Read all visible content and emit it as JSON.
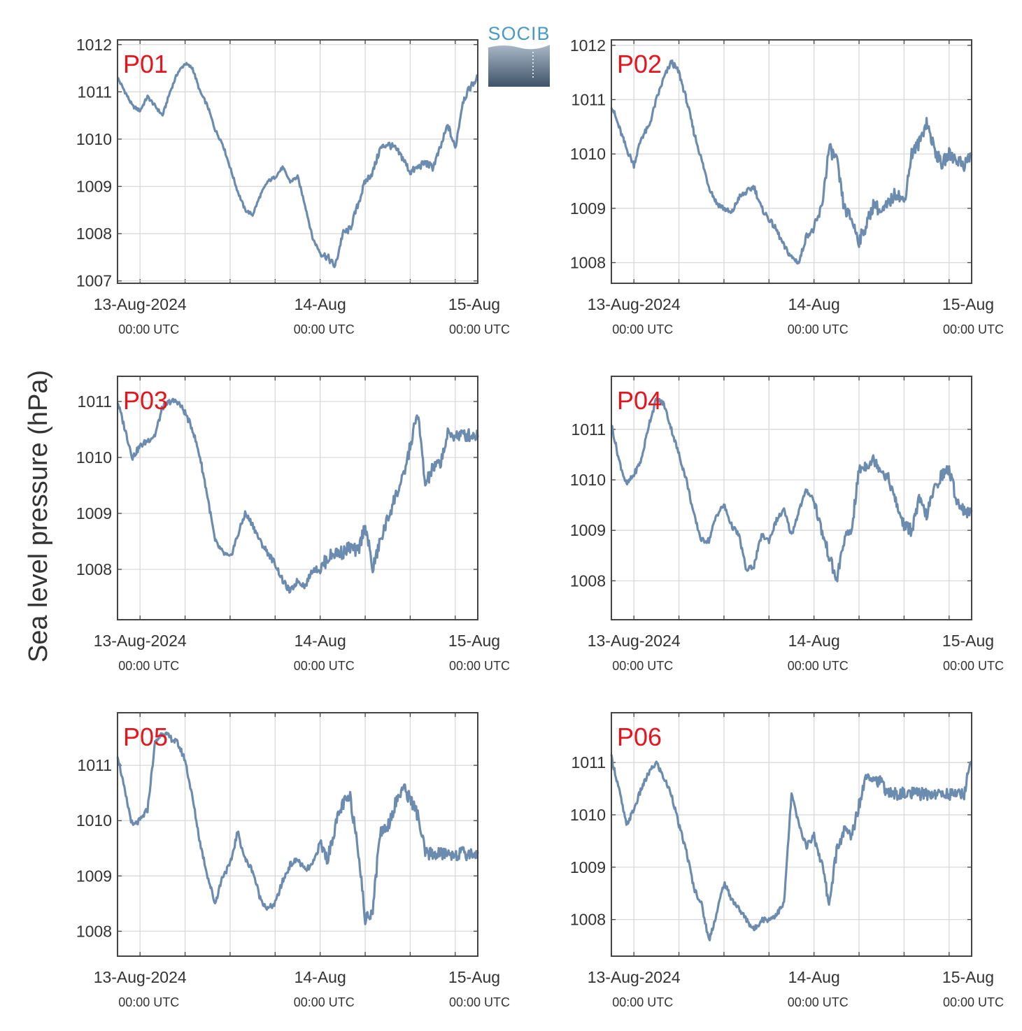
{
  "figure": {
    "ylabel": "Sea level pressure (hPa)",
    "logo_text": "SOCIB",
    "x_tick_dates": [
      "13-Aug-2024",
      "14-Aug",
      "15-Aug"
    ],
    "x_tick_times": [
      "00:00 UTC",
      "00:00 UTC",
      "00:00 UTC"
    ],
    "colors": {
      "line": "#6b8caf",
      "panel_label": "#e8141c",
      "grid": "#d9d9d9",
      "axes": "#444444"
    }
  },
  "chart_data": [
    {
      "type": "line",
      "name": "P01",
      "x_unit": "hours since 13-Aug-2024 00:00 UTC",
      "xlim": [
        -3,
        45
      ],
      "ylim": [
        1006.95,
        1012.1
      ],
      "yticks": [
        1007,
        1008,
        1009,
        1010,
        1011,
        1012
      ],
      "x": [
        -3,
        -2,
        -1,
        0,
        1,
        2,
        3,
        4,
        5,
        6,
        7,
        8,
        9,
        10,
        11,
        12,
        13,
        14,
        15,
        16,
        17,
        18,
        19,
        20,
        21,
        22,
        23,
        24,
        25,
        26,
        27,
        28,
        29,
        30,
        31,
        32,
        33,
        34,
        35,
        36,
        37,
        38,
        39,
        40,
        41,
        42,
        43,
        44,
        45
      ],
      "y": [
        1011.3,
        1011.0,
        1010.7,
        1010.6,
        1010.9,
        1010.7,
        1010.5,
        1011.0,
        1011.4,
        1011.6,
        1011.5,
        1011.0,
        1010.7,
        1010.2,
        1009.9,
        1009.4,
        1008.9,
        1008.5,
        1008.4,
        1008.8,
        1009.1,
        1009.2,
        1009.4,
        1009.1,
        1009.2,
        1008.6,
        1007.9,
        1007.6,
        1007.5,
        1007.3,
        1008.0,
        1008.1,
        1008.6,
        1009.1,
        1009.3,
        1009.8,
        1009.9,
        1009.8,
        1009.6,
        1009.3,
        1009.4,
        1009.5,
        1009.4,
        1009.8,
        1010.3,
        1009.8,
        1010.8,
        1011.1,
        1011.3
      ]
    },
    {
      "type": "line",
      "name": "P02",
      "x_unit": "hours since 13-Aug-2024 00:00 UTC",
      "xlim": [
        -3,
        45
      ],
      "ylim": [
        1007.62,
        1012.1
      ],
      "yticks": [
        1008,
        1009,
        1010,
        1011,
        1012
      ],
      "x": [
        -3,
        -2,
        -1,
        0,
        1,
        2,
        3,
        4,
        5,
        6,
        7,
        8,
        9,
        10,
        11,
        12,
        13,
        14,
        15,
        16,
        17,
        18,
        19,
        20,
        21,
        22,
        23,
        24,
        25,
        26,
        27,
        28,
        29,
        30,
        31,
        32,
        33,
        34,
        35,
        36,
        37,
        38,
        39,
        40,
        41,
        42,
        43,
        44,
        45
      ],
      "y": [
        1010.9,
        1010.5,
        1010.1,
        1009.8,
        1010.3,
        1010.5,
        1011.0,
        1011.4,
        1011.7,
        1011.5,
        1011.0,
        1010.4,
        1009.9,
        1009.4,
        1009.1,
        1009.0,
        1008.9,
        1009.2,
        1009.3,
        1009.4,
        1009.0,
        1008.8,
        1008.6,
        1008.3,
        1008.1,
        1008.0,
        1008.5,
        1008.6,
        1009.0,
        1010.1,
        1009.9,
        1009.0,
        1008.8,
        1008.4,
        1008.7,
        1009.1,
        1008.9,
        1009.1,
        1009.3,
        1009.1,
        1010.0,
        1010.2,
        1010.6,
        1010.1,
        1009.8,
        1010.0,
        1009.9,
        1009.8,
        1010.0
      ]
    },
    {
      "type": "line",
      "name": "P03",
      "x_unit": "hours since 13-Aug-2024 00:00 UTC",
      "xlim": [
        -3,
        45
      ],
      "ylim": [
        1007.1,
        1011.45
      ],
      "yticks": [
        1008,
        1009,
        1010,
        1011
      ],
      "x": [
        -3,
        -2,
        -1,
        0,
        1,
        2,
        3,
        4,
        5,
        6,
        7,
        8,
        9,
        10,
        11,
        12,
        13,
        14,
        15,
        16,
        17,
        18,
        19,
        20,
        21,
        22,
        23,
        24,
        25,
        26,
        27,
        28,
        29,
        30,
        31,
        32,
        33,
        34,
        35,
        36,
        37,
        38,
        39,
        40,
        41,
        42,
        43,
        44,
        45
      ],
      "y": [
        1011.0,
        1010.5,
        1010.0,
        1010.2,
        1010.3,
        1010.4,
        1010.9,
        1011.0,
        1011.0,
        1010.8,
        1010.5,
        1010.0,
        1009.3,
        1008.5,
        1008.3,
        1008.2,
        1008.6,
        1009.0,
        1008.8,
        1008.5,
        1008.3,
        1008.1,
        1007.8,
        1007.6,
        1007.8,
        1007.7,
        1008.0,
        1008.0,
        1008.2,
        1008.3,
        1008.3,
        1008.4,
        1008.3,
        1008.8,
        1008.0,
        1008.5,
        1008.9,
        1009.3,
        1009.6,
        1010.2,
        1010.8,
        1009.5,
        1009.8,
        1009.9,
        1010.4,
        1010.4,
        1010.4,
        1010.4,
        1010.4
      ]
    },
    {
      "type": "line",
      "name": "P04",
      "x_unit": "hours since 13-Aug-2024 00:00 UTC",
      "xlim": [
        -3,
        45
      ],
      "ylim": [
        1007.23,
        1012.05
      ],
      "yticks": [
        1008,
        1009,
        1010,
        1011
      ],
      "x": [
        -3,
        -2,
        -1,
        0,
        1,
        2,
        3,
        4,
        5,
        6,
        7,
        8,
        9,
        10,
        11,
        12,
        13,
        14,
        15,
        16,
        17,
        18,
        19,
        20,
        21,
        22,
        23,
        24,
        25,
        26,
        27,
        28,
        29,
        30,
        31,
        32,
        33,
        34,
        35,
        36,
        37,
        38,
        39,
        40,
        41,
        42,
        43,
        44,
        45
      ],
      "y": [
        1011.1,
        1010.4,
        1009.9,
        1010.1,
        1010.4,
        1011.1,
        1011.6,
        1011.5,
        1011.0,
        1010.5,
        1010.0,
        1009.3,
        1008.8,
        1008.8,
        1009.3,
        1009.5,
        1009.1,
        1008.9,
        1008.2,
        1008.3,
        1008.9,
        1008.8,
        1009.2,
        1009.4,
        1008.9,
        1009.4,
        1009.8,
        1009.6,
        1009.0,
        1008.5,
        1008.0,
        1008.8,
        1009.0,
        1010.2,
        1010.3,
        1010.4,
        1010.2,
        1010.0,
        1009.5,
        1009.1,
        1009.0,
        1009.6,
        1009.3,
        1009.8,
        1010.1,
        1010.2,
        1009.6,
        1009.4,
        1009.3
      ]
    },
    {
      "type": "line",
      "name": "P05",
      "x_unit": "hours since 13-Aug-2024 00:00 UTC",
      "xlim": [
        -3,
        45
      ],
      "ylim": [
        1007.55,
        1011.95
      ],
      "yticks": [
        1008,
        1009,
        1010,
        1011
      ],
      "x": [
        -3,
        -2,
        -1,
        0,
        1,
        2,
        3,
        4,
        5,
        6,
        7,
        8,
        9,
        10,
        11,
        12,
        13,
        14,
        15,
        16,
        17,
        18,
        19,
        20,
        21,
        22,
        23,
        24,
        25,
        26,
        27,
        28,
        29,
        30,
        31,
        32,
        33,
        34,
        35,
        36,
        37,
        38,
        39,
        40,
        41,
        42,
        43,
        44,
        45
      ],
      "y": [
        1011.2,
        1010.5,
        1009.9,
        1010.0,
        1010.2,
        1011.4,
        1011.6,
        1011.5,
        1011.4,
        1011.1,
        1010.4,
        1009.6,
        1009.0,
        1008.5,
        1009.0,
        1009.2,
        1009.8,
        1009.3,
        1009.1,
        1008.6,
        1008.4,
        1008.5,
        1008.9,
        1009.2,
        1009.3,
        1009.1,
        1009.2,
        1009.6,
        1009.3,
        1009.9,
        1010.3,
        1010.4,
        1009.6,
        1008.2,
        1008.4,
        1009.8,
        1009.9,
        1010.3,
        1010.6,
        1010.4,
        1010.1,
        1009.4,
        1009.4,
        1009.4,
        1009.4,
        1009.4,
        1009.4,
        1009.4,
        1009.4
      ]
    },
    {
      "type": "line",
      "name": "P06",
      "x_unit": "hours since 13-Aug-2024 00:00 UTC",
      "xlim": [
        -3,
        45
      ],
      "ylim": [
        1007.3,
        1011.95
      ],
      "yticks": [
        1008,
        1009,
        1010,
        1011
      ],
      "x": [
        -3,
        -2,
        -1,
        0,
        1,
        2,
        3,
        4,
        5,
        6,
        7,
        8,
        9,
        10,
        11,
        12,
        13,
        14,
        15,
        16,
        17,
        18,
        19,
        20,
        21,
        22,
        23,
        24,
        25,
        26,
        27,
        28,
        29,
        30,
        31,
        32,
        33,
        34,
        35,
        36,
        37,
        38,
        39,
        40,
        41,
        42,
        43,
        44,
        45
      ],
      "y": [
        1011.1,
        1010.5,
        1009.8,
        1010.1,
        1010.5,
        1010.8,
        1011.0,
        1010.7,
        1010.4,
        1009.8,
        1009.3,
        1008.6,
        1008.3,
        1007.6,
        1008.1,
        1008.7,
        1008.4,
        1008.2,
        1008.0,
        1007.8,
        1008.0,
        1008.0,
        1008.1,
        1008.3,
        1010.4,
        1009.8,
        1009.4,
        1009.6,
        1009.1,
        1008.3,
        1009.3,
        1009.7,
        1009.6,
        1010.2,
        1010.8,
        1010.7,
        1010.6,
        1010.4,
        1010.4,
        1010.4,
        1010.4,
        1010.4,
        1010.4,
        1010.4,
        1010.4,
        1010.4,
        1010.4,
        1010.4,
        1011.1
      ]
    }
  ]
}
